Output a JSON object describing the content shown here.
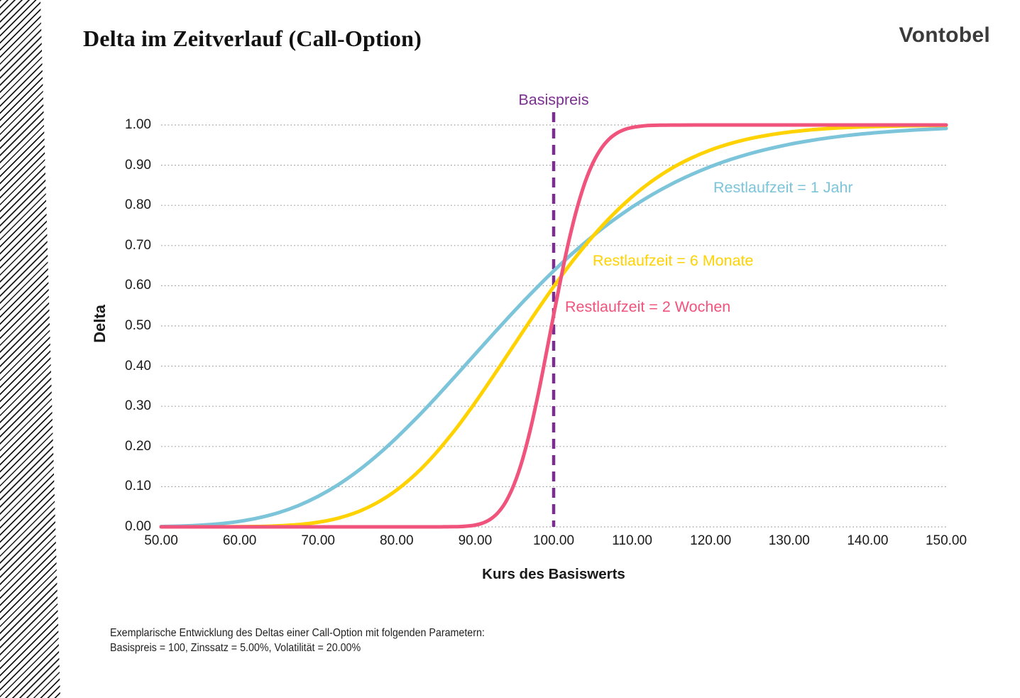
{
  "page": {
    "title": "Delta im Zeitverlauf (Call-Option)",
    "brand": "Vontobel",
    "footnote_line1": "Exemplarische Entwicklung des Deltas einer Call-Option mit folgenden Parametern:",
    "footnote_line2": "Basispreis = 100, Zinssatz = 5.00%, Volatilität = 20.00%"
  },
  "colors": {
    "blue": "#7cc4d9",
    "yellow": "#ffd200",
    "pink": "#f0537b",
    "purple": "#7a2f8f",
    "grid": "#9c9c9c",
    "text": "#1a1a1a",
    "logo": "#3a3a3a"
  },
  "chart_data": {
    "type": "line",
    "title": "Delta im Zeitverlauf (Call-Option)",
    "xlabel": "Kurs des Basiswerts",
    "ylabel": "Delta",
    "xlim": [
      50,
      150
    ],
    "ylim": [
      0,
      1
    ],
    "grid": "horizontal-dotted",
    "legend_position": "inline-annotations",
    "x_ticks": [
      {
        "value": 50,
        "label": "50.00"
      },
      {
        "value": 60,
        "label": "60.00"
      },
      {
        "value": 70,
        "label": "70.00"
      },
      {
        "value": 80,
        "label": "80.00"
      },
      {
        "value": 90,
        "label": "90.00"
      },
      {
        "value": 100,
        "label": "100.00"
      },
      {
        "value": 110,
        "label": "110.00"
      },
      {
        "value": 120,
        "label": "120.00"
      },
      {
        "value": 130,
        "label": "130.00"
      },
      {
        "value": 140,
        "label": "140.00"
      },
      {
        "value": 150,
        "label": "150.00"
      }
    ],
    "y_ticks": [
      {
        "value": 0.0,
        "label": "0.00"
      },
      {
        "value": 0.1,
        "label": "0.10"
      },
      {
        "value": 0.2,
        "label": "0.20"
      },
      {
        "value": 0.3,
        "label": "0.30"
      },
      {
        "value": 0.4,
        "label": "0.40"
      },
      {
        "value": 0.5,
        "label": "0.50"
      },
      {
        "value": 0.6,
        "label": "0.60"
      },
      {
        "value": 0.7,
        "label": "0.70"
      },
      {
        "value": 0.8,
        "label": "0.80"
      },
      {
        "value": 0.9,
        "label": "0.90"
      },
      {
        "value": 1.0,
        "label": "1.00"
      }
    ],
    "reference_line": {
      "x": 100,
      "label": "Basispreis",
      "color": "#7a2f8f",
      "style": "dashed-vertical"
    },
    "series": [
      {
        "name": "Restlaufzeit = 1 Jahr",
        "color": "#7cc4d9",
        "points": [
          [
            50,
            0.0009
          ],
          [
            52.5,
            0.002
          ],
          [
            55,
            0.0042
          ],
          [
            57.5,
            0.0078
          ],
          [
            60,
            0.0138
          ],
          [
            62.5,
            0.0228
          ],
          [
            65,
            0.0356
          ],
          [
            67.5,
            0.0532
          ],
          [
            70,
            0.076
          ],
          [
            72.5,
            0.1042
          ],
          [
            75,
            0.1382
          ],
          [
            77.5,
            0.1776
          ],
          [
            80,
            0.2219
          ],
          [
            82.5,
            0.2703
          ],
          [
            85,
            0.3218
          ],
          [
            87.5,
            0.3754
          ],
          [
            90,
            0.4298
          ],
          [
            92.5,
            0.4841
          ],
          [
            95,
            0.5373
          ],
          [
            97.5,
            0.5884
          ],
          [
            100,
            0.6368
          ],
          [
            102.5,
            0.6821
          ],
          [
            105,
            0.7237
          ],
          [
            107.5,
            0.7617
          ],
          [
            110,
            0.7958
          ],
          [
            112.5,
            0.8261
          ],
          [
            115,
            0.8529
          ],
          [
            117.5,
            0.8762
          ],
          [
            120,
            0.8964
          ],
          [
            122.5,
            0.9138
          ],
          [
            125,
            0.9286
          ],
          [
            127.5,
            0.9411
          ],
          [
            130,
            0.9517
          ],
          [
            132.5,
            0.9605
          ],
          [
            135,
            0.9679
          ],
          [
            137.5,
            0.974
          ],
          [
            140,
            0.979
          ],
          [
            142.5,
            0.9831
          ],
          [
            145,
            0.9864
          ],
          [
            147.5,
            0.9891
          ],
          [
            150,
            0.9913
          ]
        ]
      },
      {
        "name": "Restlaufzeit = 6 Monate",
        "color": "#ffd200",
        "points": [
          [
            50,
            0.0
          ],
          [
            52.5,
            0.0
          ],
          [
            55,
            0.0001
          ],
          [
            57.5,
            0.0001
          ],
          [
            60,
            0.0004
          ],
          [
            62.5,
            0.001
          ],
          [
            65,
            0.0026
          ],
          [
            67.5,
            0.0057
          ],
          [
            70,
            0.0115
          ],
          [
            72.5,
            0.0213
          ],
          [
            75,
            0.037
          ],
          [
            77.5,
            0.06
          ],
          [
            80,
            0.0917
          ],
          [
            82.5,
            0.1328
          ],
          [
            85,
            0.1836
          ],
          [
            87.5,
            0.243
          ],
          [
            90,
            0.3093
          ],
          [
            92.5,
            0.3806
          ],
          [
            95,
            0.4541
          ],
          [
            97.5,
            0.5273
          ],
          [
            100,
            0.5977
          ],
          [
            102.5,
            0.6635
          ],
          [
            105,
            0.7232
          ],
          [
            107.5,
            0.776
          ],
          [
            110,
            0.8216
          ],
          [
            112.5,
            0.8601
          ],
          [
            115,
            0.8918
          ],
          [
            117.5,
            0.9174
          ],
          [
            120,
            0.9378
          ],
          [
            122.5,
            0.9537
          ],
          [
            125,
            0.966
          ],
          [
            127.5,
            0.9753
          ],
          [
            130,
            0.9823
          ],
          [
            132.5,
            0.9874
          ],
          [
            135,
            0.9911
          ],
          [
            137.5,
            0.9938
          ],
          [
            140,
            0.9957
          ],
          [
            142.5,
            0.997
          ],
          [
            145,
            0.998
          ],
          [
            147.5,
            0.9986
          ],
          [
            150,
            0.9991
          ]
        ]
      },
      {
        "name": "Restlaufzeit = 2 Wochen",
        "color": "#f0537b",
        "points": [
          [
            50,
            0.0
          ],
          [
            55,
            0.0
          ],
          [
            60,
            0.0
          ],
          [
            65,
            0.0
          ],
          [
            70,
            0.0
          ],
          [
            75,
            0.0
          ],
          [
            80,
            0.0
          ],
          [
            82,
            0.0
          ],
          [
            84,
            0.0
          ],
          [
            85,
            0.0
          ],
          [
            86,
            0.0001
          ],
          [
            87,
            0.0003
          ],
          [
            88,
            0.0007
          ],
          [
            89,
            0.0019
          ],
          [
            90,
            0.0044
          ],
          [
            91,
            0.0098
          ],
          [
            92,
            0.0198
          ],
          [
            93,
            0.0374
          ],
          [
            94,
            0.0656
          ],
          [
            95,
            0.1077
          ],
          [
            96,
            0.1655
          ],
          [
            97,
            0.2394
          ],
          [
            98,
            0.3277
          ],
          [
            99,
            0.4256
          ],
          [
            100,
            0.5274
          ],
          [
            101,
            0.6264
          ],
          [
            102,
            0.7169
          ],
          [
            103,
            0.7945
          ],
          [
            104,
            0.8574
          ],
          [
            105,
            0.9054
          ],
          [
            106,
            0.9399
          ],
          [
            107,
            0.9636
          ],
          [
            108,
            0.9789
          ],
          [
            109,
            0.9883
          ],
          [
            110,
            0.9938
          ],
          [
            112,
            0.9985
          ],
          [
            114,
            0.9997
          ],
          [
            116,
            0.9999
          ],
          [
            118,
            1.0
          ],
          [
            120,
            1.0
          ],
          [
            125,
            1.0
          ],
          [
            130,
            1.0
          ],
          [
            135,
            1.0
          ],
          [
            140,
            1.0
          ],
          [
            145,
            1.0
          ],
          [
            150,
            1.0
          ]
        ]
      }
    ],
    "parameters_note": "Basispreis = 100, Zinssatz = 5.00%, Volatilität = 20.00%"
  }
}
